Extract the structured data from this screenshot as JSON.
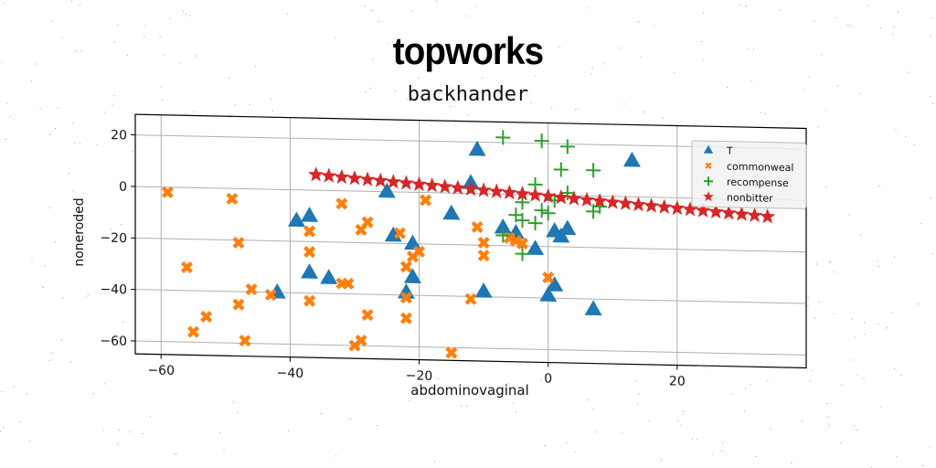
{
  "header": {
    "suptitle": "topworks",
    "title": "backhander"
  },
  "chart_data": {
    "type": "scatter",
    "title": "backhander",
    "xlabel": "abdominovaginal",
    "ylabel": "noneroded",
    "xlim": [
      -64,
      40
    ],
    "ylim": [
      -65,
      28
    ],
    "xticks": [
      -60,
      -40,
      -20,
      0,
      20
    ],
    "yticks": [
      -60,
      -40,
      -20,
      0,
      20
    ],
    "grid": true,
    "legend_position": "top-right",
    "series": [
      {
        "name": "T",
        "marker": "triangle",
        "color": "#1f77b4",
        "points": [
          [
            -11,
            17
          ],
          [
            13,
            14
          ],
          [
            -25,
            0
          ],
          [
            -12,
            4
          ],
          [
            -39,
            -12
          ],
          [
            -37,
            -10
          ],
          [
            -24,
            -17
          ],
          [
            -15,
            -8
          ],
          [
            -21,
            -20
          ],
          [
            -21,
            -33
          ],
          [
            -22,
            -39
          ],
          [
            -10,
            -38
          ],
          [
            -37,
            -32
          ],
          [
            -34,
            -34
          ],
          [
            -42,
            -40
          ],
          [
            0,
            -39
          ],
          [
            1,
            -35
          ],
          [
            7,
            -44
          ],
          [
            2,
            -16
          ],
          [
            3,
            -13
          ],
          [
            -2,
            -21
          ],
          [
            -5,
            -15
          ],
          [
            -7,
            -13
          ],
          [
            1,
            -14
          ]
        ]
      },
      {
        "name": "commonweal",
        "marker": "x",
        "color": "#ff7f0e",
        "points": [
          [
            -59,
            -2
          ],
          [
            -56,
            -31
          ],
          [
            -49,
            -4
          ],
          [
            -48,
            -21
          ],
          [
            -46,
            -39
          ],
          [
            -53,
            -50
          ],
          [
            -55,
            -56
          ],
          [
            -48,
            -45
          ],
          [
            -47,
            -59
          ],
          [
            -43,
            -41
          ],
          [
            -37,
            -16
          ],
          [
            -37,
            -24
          ],
          [
            -37,
            -43
          ],
          [
            -32,
            -5
          ],
          [
            -32,
            -36
          ],
          [
            -31,
            -36
          ],
          [
            -29,
            -15
          ],
          [
            -28,
            -12
          ],
          [
            -28,
            -48
          ],
          [
            -29,
            -58
          ],
          [
            -30,
            -60
          ],
          [
            -23,
            -16
          ],
          [
            -22,
            -29
          ],
          [
            -22,
            -41
          ],
          [
            -22,
            -49
          ],
          [
            -21,
            -25
          ],
          [
            -20,
            -23
          ],
          [
            -19,
            -3
          ],
          [
            -15,
            -62
          ],
          [
            -12,
            -41
          ],
          [
            -11,
            -13
          ],
          [
            -10,
            -19
          ],
          [
            -10,
            -24
          ],
          [
            -6,
            -17
          ],
          [
            -5,
            -18
          ],
          [
            -4,
            -19
          ],
          [
            0,
            -32
          ]
        ]
      },
      {
        "name": "recompense",
        "marker": "plus",
        "color": "#2ca02c",
        "points": [
          [
            -7,
            22
          ],
          [
            -1,
            21
          ],
          [
            3,
            19
          ],
          [
            2,
            10
          ],
          [
            7,
            10
          ],
          [
            -2,
            4
          ],
          [
            3,
            1
          ],
          [
            -5,
            -8
          ],
          [
            -4,
            -10
          ],
          [
            -1,
            -6
          ],
          [
            0,
            -7
          ],
          [
            -2,
            -11
          ],
          [
            -7,
            -16
          ],
          [
            -4,
            -23
          ],
          [
            7,
            -6
          ],
          [
            8,
            -4
          ],
          [
            -4,
            -3
          ],
          [
            1,
            -2
          ]
        ]
      },
      {
        "name": "nonbitter",
        "marker": "star",
        "color": "#d62728",
        "points": [
          [
            -36,
            6
          ],
          [
            -34,
            5.64
          ],
          [
            -32,
            5.28
          ],
          [
            -30,
            4.92
          ],
          [
            -28,
            4.56
          ],
          [
            -26,
            4.2
          ],
          [
            -24,
            3.84
          ],
          [
            -22,
            3.48
          ],
          [
            -20,
            3.12
          ],
          [
            -18,
            2.76
          ],
          [
            -16,
            2.4
          ],
          [
            -14,
            2.04
          ],
          [
            -12,
            1.68
          ],
          [
            -10,
            1.32
          ],
          [
            -8,
            0.96
          ],
          [
            -6,
            0.6
          ],
          [
            -4,
            0.24
          ],
          [
            -2,
            -0.12
          ],
          [
            0,
            -0.48
          ],
          [
            2,
            -0.84
          ],
          [
            4,
            -1.2
          ],
          [
            6,
            -1.56
          ],
          [
            8,
            -1.92
          ],
          [
            10,
            -2.28
          ],
          [
            12,
            -2.64
          ],
          [
            14,
            -3
          ],
          [
            16,
            -3.36
          ],
          [
            18,
            -3.72
          ],
          [
            20,
            -4.08
          ],
          [
            22,
            -4.44
          ],
          [
            24,
            -4.8
          ],
          [
            26,
            -5.16
          ],
          [
            28,
            -5.52
          ],
          [
            30,
            -5.88
          ],
          [
            32,
            -6.24
          ],
          [
            34,
            -6.6
          ]
        ]
      }
    ]
  }
}
